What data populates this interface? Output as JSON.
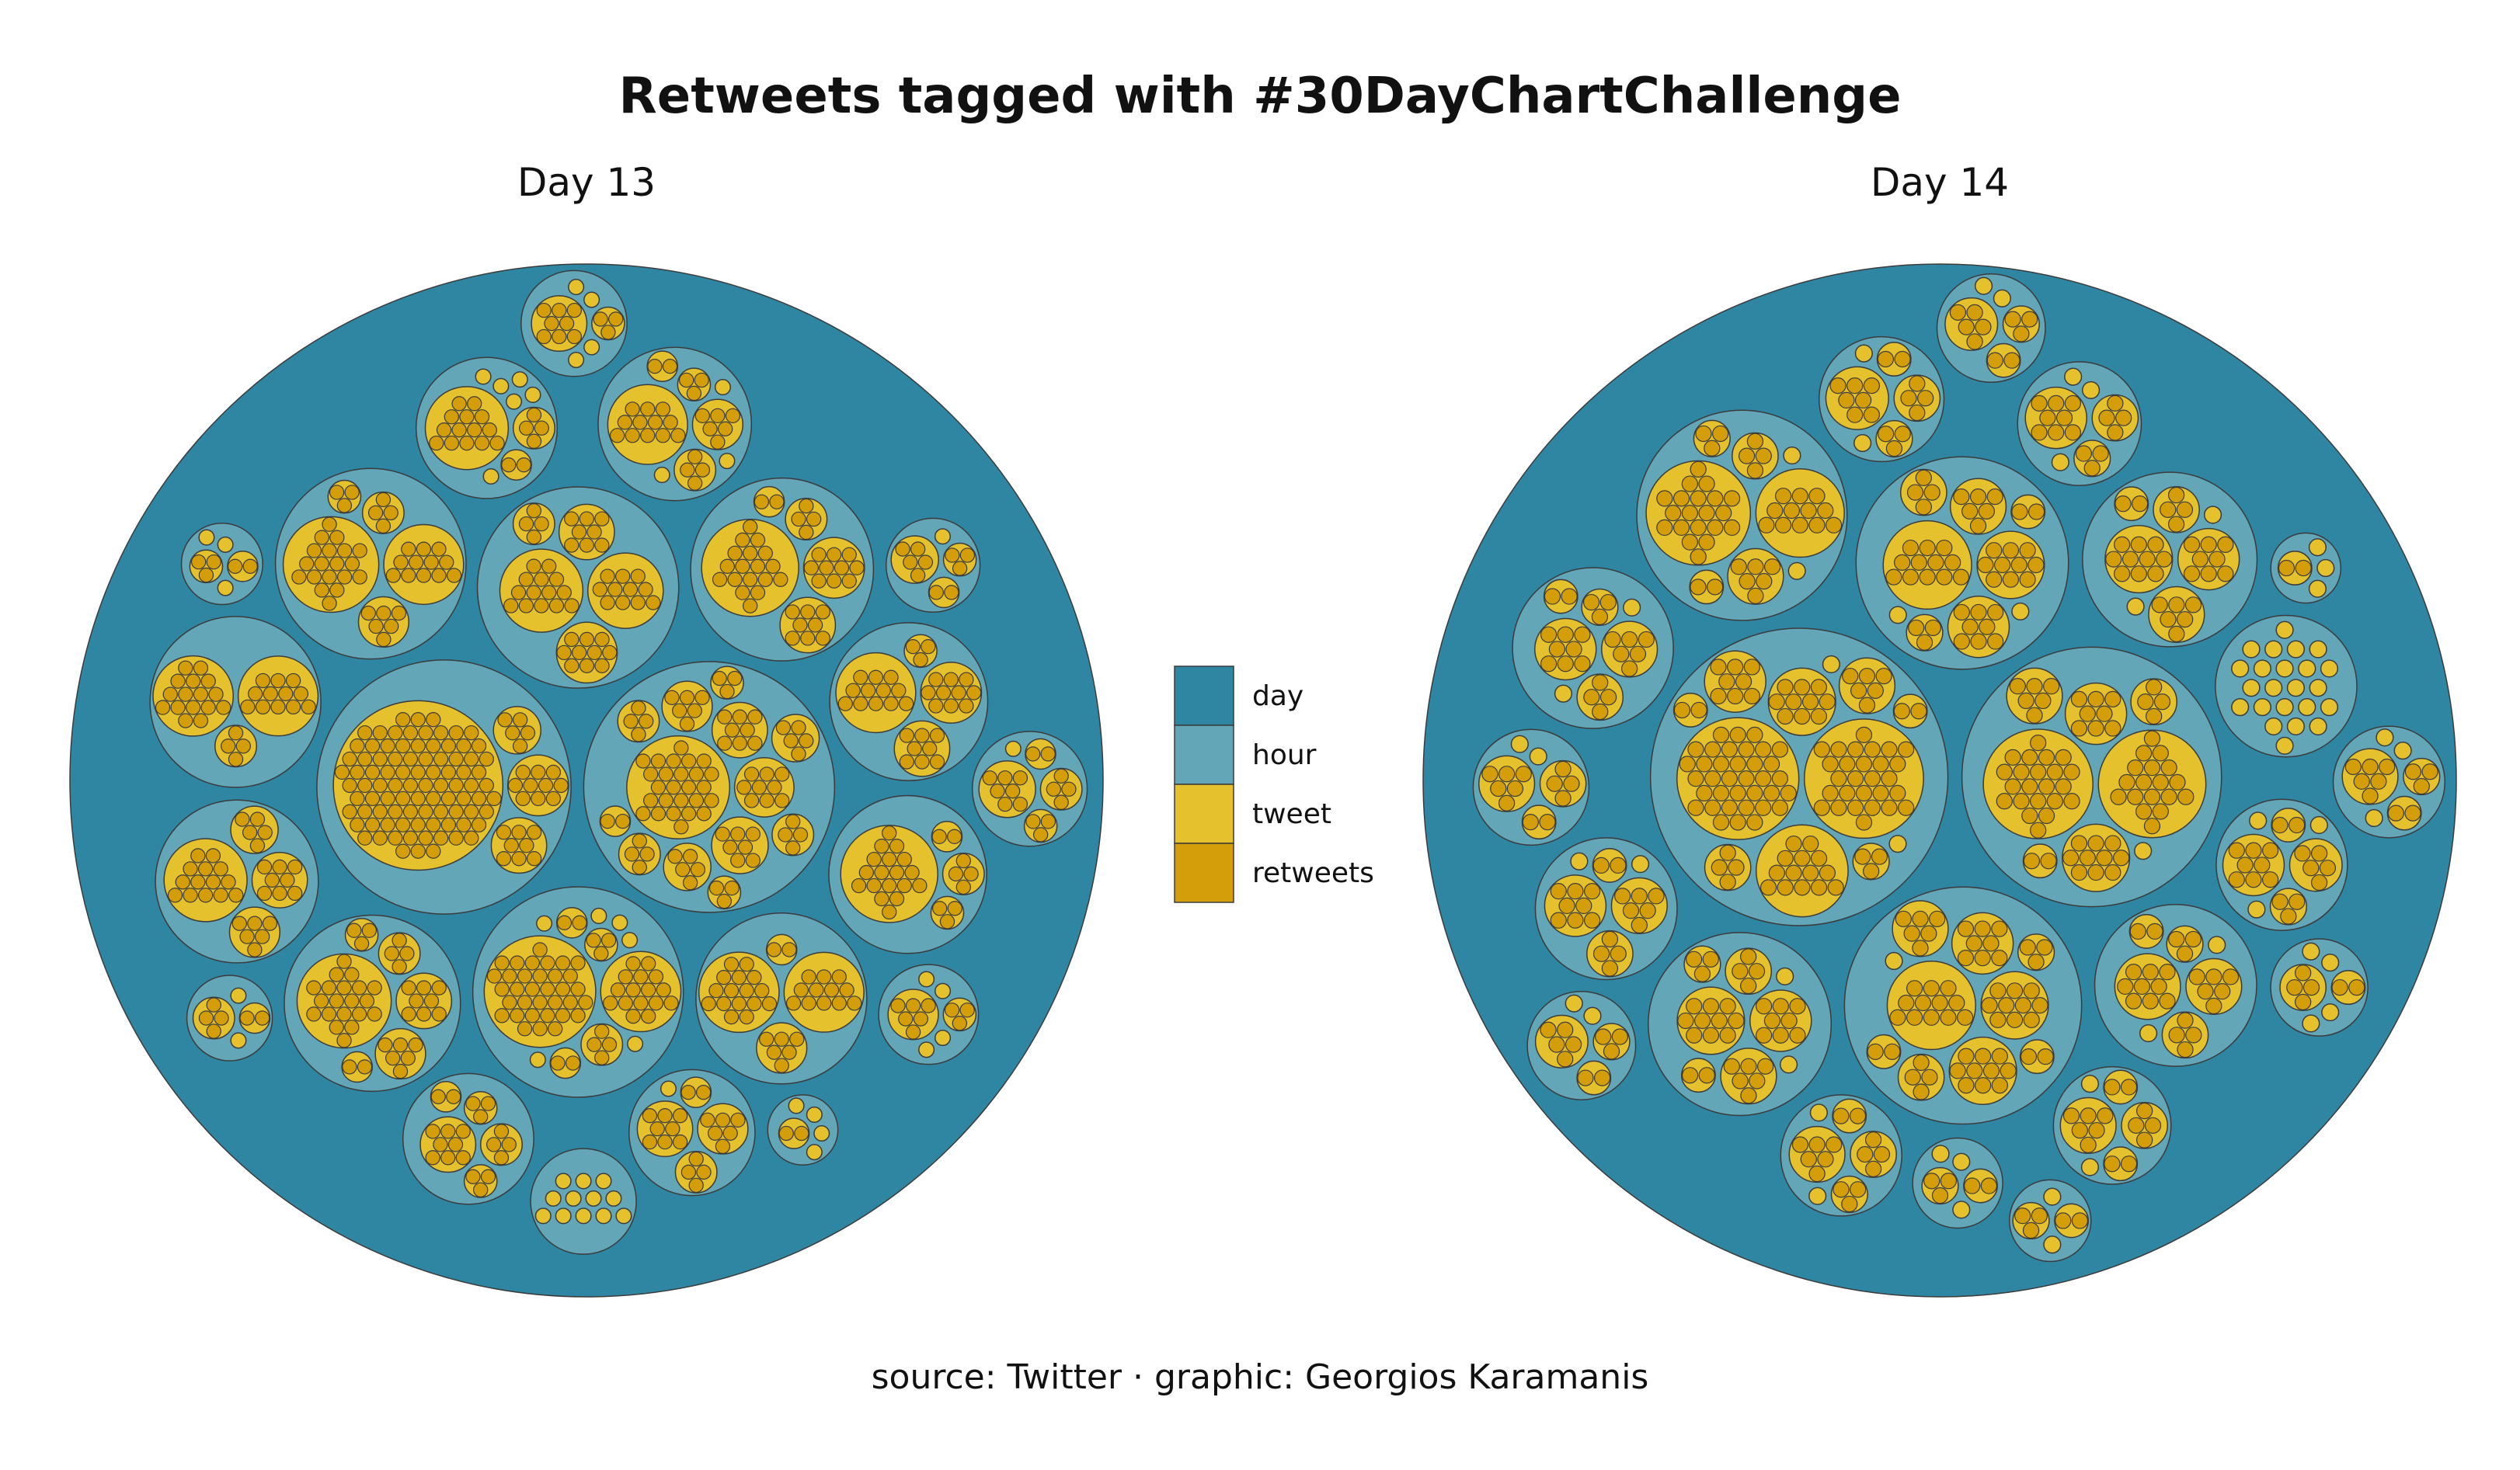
{
  "title": "Retweets tagged with #30DayChartChallenge",
  "caption": "source: Twitter · graphic: Georgios Karamanis",
  "colors": {
    "day": "#2f86a3",
    "hour": "#62a6b8",
    "tweet": "#e5c12d",
    "retweets": "#d49d0a",
    "stroke": "#3b3b3b"
  },
  "legend": [
    {
      "key": "day",
      "label": "day"
    },
    {
      "key": "hour",
      "label": "hour"
    },
    {
      "key": "tweet",
      "label": "tweet"
    },
    {
      "key": "retweets",
      "label": "retweets"
    }
  ],
  "chart_data": {
    "type": "circle-packing",
    "hierarchy": [
      "day",
      "hour",
      "tweet",
      "retweets"
    ],
    "legend_position": "center",
    "facets": [
      {
        "label": "Day 13",
        "hours": [
          {
            "tweets": [
              26,
              4,
              9,
              5,
              6,
              3,
              4,
              7,
              8,
              4,
              3,
              5,
              2
            ]
          },
          {
            "tweets": [
              90,
              10,
              8,
              5
            ]
          },
          {
            "tweets": [
              12,
              10,
              8,
              3
            ]
          },
          {
            "tweets": [
              18,
              3,
              2,
              4
            ]
          },
          {
            "tweets": [
              14,
              11,
              10,
              8,
              4
            ]
          },
          {
            "tweets": [
              19,
              12,
              6,
              4,
              3
            ]
          },
          {
            "tweets": [
              16,
              12,
              6,
              2
            ]
          },
          {
            "tweets": [
              16,
              12,
              4
            ]
          },
          {
            "tweets": [
              14,
              8,
              5,
              6
            ]
          },
          {
            "tweets": [
              18,
              10,
              8,
              4,
              2
            ]
          },
          {
            "tweets": [
              20,
              8,
              6,
              4,
              3,
              2
            ]
          },
          {
            "tweets": [
              34,
              16,
              4,
              3,
              2,
              2,
              1,
              1,
              1,
              1,
              1,
              1
            ]
          },
          {
            "tweets": [
              5,
              3,
              2,
              1
            ]
          },
          {
            "tweets": [
              7,
              4,
              3,
              2,
              1
            ]
          },
          {
            "tweets": [
              6,
              3,
              1,
              1,
              1,
              1
            ]
          },
          {
            "tweets": [
              8,
              4,
              3,
              3,
              2
            ]
          },
          {
            "tweets": [
              12,
              6,
              4,
              3,
              2,
              1,
              1,
              1
            ]
          },
          {
            "tweets": [
              8,
              6,
              4,
              2,
              1
            ]
          },
          {
            "tweets": [
              14,
              4,
              2,
              1,
              1,
              1,
              1,
              1,
              1
            ]
          },
          {
            "tweets": [
              8,
              3,
              1,
              1,
              1,
              1
            ]
          },
          {
            "tweets": [
              4,
              2,
              1,
              1
            ]
          },
          {
            "tweets": [
              3,
              2,
              1,
              1,
              1
            ]
          },
          {
            "tweets": [
              2,
              1,
              1,
              1,
              1
            ]
          },
          {
            "tweets": [
              1,
              1,
              1,
              1,
              1,
              1,
              1,
              1,
              1,
              1,
              1,
              1
            ]
          }
        ]
      },
      {
        "label": "Day 14",
        "hours": [
          {
            "tweets": [
              36,
              28,
              14,
              10,
              8,
              6,
              4,
              3,
              2,
              2,
              1,
              1
            ]
          },
          {
            "tweets": [
              12,
              10,
              10,
              8,
              6,
              4,
              3,
              2,
              2,
              1
            ]
          },
          {
            "tweets": [
              20,
              12,
              6,
              4,
              3,
              2,
              1,
              1
            ]
          },
          {
            "tweets": [
              22,
              18,
              10,
              8,
              6,
              4,
              2,
              1
            ]
          },
          {
            "tweets": [
              12,
              10,
              8,
              6,
              4,
              3,
              2,
              1,
              1
            ]
          },
          {
            "tweets": [
              10,
              8,
              6,
              4,
              3,
              2,
              1,
              1
            ]
          },
          {
            "tweets": [
              8,
              6,
              4,
              3,
              2,
              1,
              1
            ]
          },
          {
            "tweets": [
              9,
              6,
              4,
              3,
              2,
              1,
              1
            ]
          },
          {
            "tweets": [
              10,
              8,
              6,
              4,
              2,
              1,
              1
            ]
          },
          {
            "tweets": [
              8,
              5,
              3,
              2,
              1,
              1,
              1
            ]
          },
          {
            "tweets": [
              7,
              4,
              3,
              2,
              1,
              1
            ]
          },
          {
            "tweets": [
              6,
              4,
              3,
              2,
              1,
              1
            ]
          },
          {
            "tweets": [
              8,
              6,
              4,
              2,
              1,
              1
            ]
          },
          {
            "tweets": [
              6,
              4,
              2,
              2,
              1,
              1
            ]
          },
          {
            "tweets": [
              5,
              3,
              2,
              1,
              1
            ]
          },
          {
            "tweets": [
              6,
              4,
              2,
              1,
              1
            ]
          },
          {
            "tweets": [
              8,
              4,
              3,
              1,
              1,
              1
            ]
          },
          {
            "tweets": [
              4,
              2,
              1,
              1,
              1,
              1
            ]
          },
          {
            "tweets": [
              5,
              3,
              2,
              1,
              1
            ]
          },
          {
            "tweets": [
              6,
              3,
              2,
              1,
              1,
              1
            ]
          },
          {
            "tweets": [
              3,
              2,
              1,
              1,
              1
            ]
          },
          {
            "tweets": [
              2,
              1,
              1,
              1
            ]
          },
          {
            "tweets": [
              1,
              1,
              1,
              1,
              1,
              1,
              1,
              1,
              1,
              1,
              1,
              1,
              1,
              1,
              1,
              1,
              1,
              1,
              1,
              1,
              1,
              1,
              1
            ]
          },
          {
            "tweets": [
              3,
              2,
              1,
              1
            ]
          }
        ]
      }
    ]
  }
}
